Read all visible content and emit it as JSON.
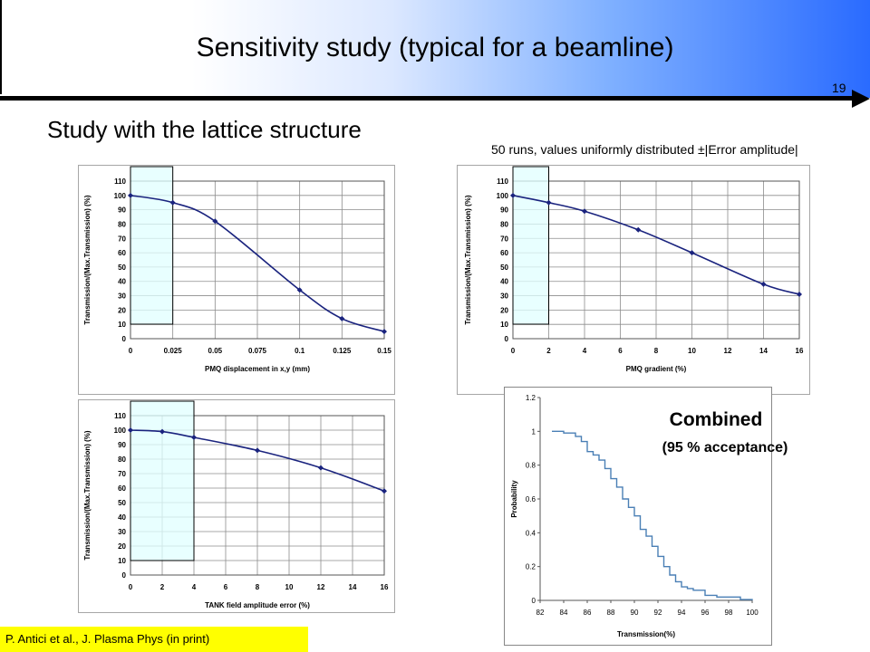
{
  "slide": {
    "title": "Sensitivity study (typical for a beamline)",
    "page_number": "19",
    "subtitle": "Study with the lattice structure",
    "runs_note": "50 runs, values uniformly distributed ±|Error amplitude|",
    "combined_label": "Combined",
    "acceptance_label": "(95 % acceptance)",
    "citation": "P. Antici et al., J. Plasma Phys (in print)"
  },
  "colors": {
    "curve": "#1a237e",
    "highlight_fill": "#e0ffff",
    "cdf_line": "#4a7fb5",
    "citation_bg": "#ffff00"
  },
  "chart_data": [
    {
      "type": "line",
      "xlabel": "PMQ displacement in x,y (mm)",
      "ylabel": "Transmission/(Max.Transmission) (%)",
      "x": [
        0,
        0.025,
        0.05,
        0.1,
        0.125,
        0.15
      ],
      "y": [
        100,
        95,
        82,
        34,
        14,
        5
      ],
      "x_ticks": [
        "0",
        "0.025",
        "0.05",
        "0.075",
        "0.1",
        "0.125",
        "0.15"
      ],
      "xlim": [
        0,
        0.15
      ],
      "ylim": [
        0,
        110
      ],
      "y_ticks": [
        "0",
        "10",
        "20",
        "30",
        "40",
        "50",
        "60",
        "70",
        "80",
        "90",
        "100",
        "110"
      ],
      "highlight_x": [
        0,
        0.025
      ],
      "grid": true
    },
    {
      "type": "line",
      "xlabel": "PMQ gradient (%)",
      "ylabel": "Transmission/(Max.Transmission) (%)",
      "x": [
        0,
        2,
        4,
        7,
        10,
        14,
        16
      ],
      "y": [
        100,
        95,
        89,
        76,
        60,
        38,
        31
      ],
      "x_ticks": [
        "0",
        "2",
        "4",
        "6",
        "8",
        "10",
        "12",
        "14",
        "16"
      ],
      "xlim": [
        0,
        16
      ],
      "ylim": [
        0,
        110
      ],
      "y_ticks": [
        "0",
        "10",
        "20",
        "30",
        "40",
        "50",
        "60",
        "70",
        "80",
        "90",
        "100",
        "110"
      ],
      "highlight_x": [
        0,
        2
      ],
      "grid": true
    },
    {
      "type": "line",
      "xlabel": "TANK field amplitude error (%)",
      "ylabel": "Transmission/(Max.Transmission) (%)",
      "x": [
        0,
        2,
        4,
        8,
        12,
        16
      ],
      "y": [
        100,
        99,
        95,
        86,
        74,
        58
      ],
      "x_ticks": [
        "0",
        "2",
        "4",
        "6",
        "8",
        "10",
        "12",
        "14",
        "16"
      ],
      "xlim": [
        0,
        16
      ],
      "ylim": [
        0,
        110
      ],
      "y_ticks": [
        "0",
        "10",
        "20",
        "30",
        "40",
        "50",
        "60",
        "70",
        "80",
        "90",
        "100",
        "110"
      ],
      "highlight_x": [
        0,
        4
      ],
      "grid": true
    },
    {
      "type": "line",
      "xlabel": "Transmission(%)",
      "ylabel": "Probability",
      "x": [
        83,
        84,
        85,
        85.5,
        86,
        86.5,
        87,
        87.5,
        88,
        88.5,
        89,
        89.5,
        90,
        90.5,
        91,
        91.5,
        92,
        92.5,
        93,
        93.5,
        94,
        94.5,
        95,
        96,
        97,
        98,
        99,
        100
      ],
      "y": [
        1.0,
        0.99,
        0.97,
        0.94,
        0.88,
        0.86,
        0.83,
        0.78,
        0.72,
        0.67,
        0.6,
        0.55,
        0.5,
        0.42,
        0.38,
        0.32,
        0.26,
        0.2,
        0.15,
        0.11,
        0.08,
        0.07,
        0.06,
        0.03,
        0.02,
        0.02,
        0.005,
        0.0
      ],
      "x_ticks": [
        "82",
        "84",
        "86",
        "88",
        "90",
        "92",
        "94",
        "96",
        "98",
        "100"
      ],
      "xlim": [
        82,
        100
      ],
      "ylim": [
        0,
        1.2
      ],
      "y_ticks": [
        "0",
        "0.2",
        "0.4",
        "0.6",
        "0.8",
        "1",
        "1.2"
      ],
      "grid": false,
      "step": true
    }
  ]
}
